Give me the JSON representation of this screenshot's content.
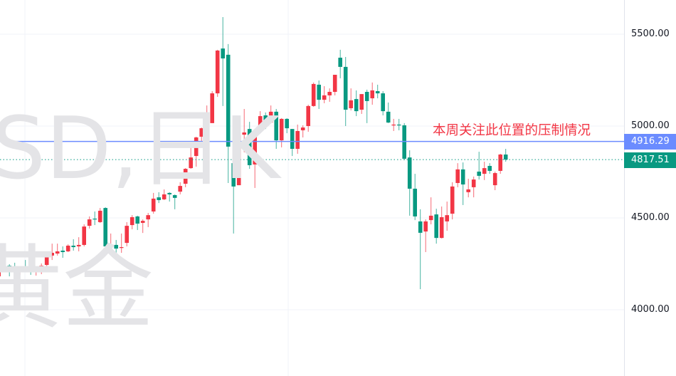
{
  "watermark": {
    "line1": "SD,日K",
    "line2": "黄金"
  },
  "annotation": "本周关注此位置的压制情况",
  "price_axis": {
    "labels": [
      "5500.00",
      "5000.00",
      "4500.00",
      "4000.00"
    ]
  },
  "level_line": {
    "label": "4916.29",
    "color": "#6b8cff"
  },
  "last_price": {
    "label": "4817.51",
    "color": "#089981"
  },
  "colors": {
    "up": "#f23645",
    "down": "#089981",
    "grid": "#f0f3fa",
    "annotation": "#f23645"
  },
  "chart_data": {
    "type": "candlestick",
    "up_color_meaning": "red = rising, green = falling",
    "yticks": [
      5500,
      5000,
      4500,
      4000
    ],
    "ylim": [
      3720,
      5700
    ],
    "grid": true,
    "horizontal_lines": [
      {
        "value": 4916.29,
        "style": "solid"
      },
      {
        "value": 4817.51,
        "style": "dotted"
      }
    ],
    "ohlc": [
      [
        4182,
        4230,
        4180,
        4225
      ],
      [
        4233,
        4275,
        4213,
        4240
      ],
      [
        4240,
        4248,
        4182,
        4221
      ],
      [
        4220,
        4256,
        4205,
        4217
      ],
      [
        4219,
        4233,
        4190,
        4221
      ],
      [
        4221,
        4271,
        4205,
        4209
      ],
      [
        4209,
        4228,
        4190,
        4205
      ],
      [
        4205,
        4233,
        4186,
        4221
      ],
      [
        4225,
        4252,
        4194,
        4240
      ],
      [
        4244,
        4299,
        4221,
        4295
      ],
      [
        4295,
        4360,
        4271,
        4310
      ],
      [
        4306,
        4360,
        4295,
        4318
      ],
      [
        4322,
        4345,
        4283,
        4314
      ],
      [
        4318,
        4356,
        4314,
        4349
      ],
      [
        4349,
        4384,
        4322,
        4341
      ],
      [
        4345,
        4395,
        4318,
        4353
      ],
      [
        4353,
        4465,
        4345,
        4453
      ],
      [
        4457,
        4508,
        4442,
        4492
      ],
      [
        4496,
        4535,
        4461,
        4492
      ],
      [
        4477,
        4554,
        4473,
        4539
      ],
      [
        4554,
        4558,
        4318,
        4345
      ],
      [
        4341,
        4415,
        4337,
        4345
      ],
      [
        4353,
        4380,
        4287,
        4333
      ],
      [
        4337,
        4415,
        4310,
        4341
      ],
      [
        4364,
        4477,
        4345,
        4457
      ],
      [
        4461,
        4515,
        4438,
        4504
      ],
      [
        4508,
        4512,
        4434,
        4469
      ],
      [
        4473,
        4492,
        4418,
        4484
      ],
      [
        4492,
        4527,
        4450,
        4515
      ],
      [
        4535,
        4636,
        4523,
        4605
      ],
      [
        4612,
        4640,
        4581,
        4597
      ],
      [
        4601,
        4655,
        4597,
        4628
      ],
      [
        4636,
        4640,
        4589,
        4628
      ],
      [
        4624,
        4628,
        4547,
        4609
      ],
      [
        4643,
        4694,
        4628,
        4674
      ],
      [
        4686,
        4771,
        4667,
        4767
      ],
      [
        4771,
        4891,
        4767,
        4829
      ],
      [
        4837,
        4942,
        4779,
        4938
      ],
      [
        4942,
        4992,
        4903,
        4988
      ],
      [
        4992,
        5112,
        4988,
        5012
      ],
      [
        5016,
        5190,
        5016,
        5178
      ],
      [
        5178,
        5415,
        5159,
        5411
      ],
      [
        5422,
        5593,
        5109,
        5368
      ],
      [
        5388,
        5446,
        4690,
        4888
      ],
      [
        4798,
        4888,
        4415,
        4671
      ],
      [
        4678,
        4996,
        4678,
        4950
      ],
      [
        4953,
        5093,
        4857,
        4965
      ],
      [
        4984,
        5023,
        4767,
        4787
      ],
      [
        4791,
        4977,
        4663,
        4969
      ],
      [
        4981,
        5081,
        4961,
        5054
      ],
      [
        5058,
        5074,
        4984,
        5019
      ],
      [
        5019,
        5112,
        5016,
        5078
      ],
      [
        5078,
        5093,
        4876,
        4922
      ],
      [
        4922,
        5043,
        4884,
        5039
      ],
      [
        5039,
        5043,
        4961,
        4988
      ],
      [
        4984,
        4984,
        4837,
        4876
      ],
      [
        4876,
        5008,
        4849,
        4973
      ],
      [
        4977,
        5004,
        4938,
        4992
      ],
      [
        5000,
        5116,
        4969,
        5109
      ],
      [
        5109,
        5237,
        5105,
        5229
      ],
      [
        5225,
        5248,
        5093,
        5143
      ],
      [
        5143,
        5217,
        5124,
        5167
      ],
      [
        5167,
        5205,
        5132,
        5186
      ],
      [
        5186,
        5279,
        5167,
        5279
      ],
      [
        5372,
        5415,
        5260,
        5322
      ],
      [
        5322,
        5376,
        5000,
        5089
      ],
      [
        5097,
        5205,
        5085,
        5140
      ],
      [
        5147,
        5194,
        5054,
        5081
      ],
      [
        5089,
        5174,
        5066,
        5174
      ],
      [
        5186,
        5198,
        5016,
        5136
      ],
      [
        5151,
        5237,
        5116,
        5194
      ],
      [
        5190,
        5225,
        5151,
        5178
      ],
      [
        5178,
        5190,
        5058,
        5081
      ],
      [
        5078,
        5128,
        5016,
        5019
      ],
      [
        5004,
        5039,
        4973,
        5008
      ],
      [
        5008,
        5039,
        4977,
        5004
      ],
      [
        5004,
        5016,
        4814,
        4822
      ],
      [
        4829,
        4868,
        4512,
        4659
      ],
      [
        4659,
        4740,
        4488,
        4508
      ],
      [
        4481,
        4547,
        4112,
        4419
      ],
      [
        4426,
        4492,
        4314,
        4481
      ],
      [
        4488,
        4612,
        4465,
        4512
      ],
      [
        4519,
        4550,
        4360,
        4391
      ],
      [
        4391,
        4562,
        4388,
        4504
      ],
      [
        4481,
        4589,
        4430,
        4515
      ],
      [
        4523,
        4694,
        4492,
        4671
      ],
      [
        4690,
        4798,
        4667,
        4764
      ],
      [
        4764,
        4802,
        4570,
        4682
      ],
      [
        4640,
        4713,
        4612,
        4655
      ],
      [
        4667,
        4725,
        4612,
        4709
      ],
      [
        4752,
        4860,
        4709,
        4729
      ],
      [
        4740,
        4806,
        4706,
        4771
      ],
      [
        4783,
        4798,
        4740,
        4756
      ],
      [
        4678,
        4752,
        4651,
        4744
      ],
      [
        4756,
        4849,
        4740,
        4845
      ],
      [
        4845,
        4876,
        4806,
        4817.51
      ]
    ]
  }
}
